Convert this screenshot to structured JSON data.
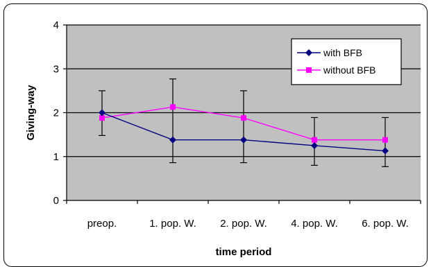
{
  "chart_data": {
    "type": "line",
    "title": "",
    "xlabel": "time period",
    "ylabel": "Giving-way",
    "ylim": [
      0,
      4
    ],
    "yticks": [
      0,
      1,
      2,
      3,
      4
    ],
    "grid": true,
    "legend_position": "top-right",
    "categories": [
      "preop.",
      "1. pop. W.",
      "2. pop. W.",
      "4. pop. W.",
      "6. pop. W."
    ],
    "series": [
      {
        "name": "with BFB",
        "color": "#000080",
        "marker": "diamond",
        "values": [
          2.0,
          1.38,
          1.38,
          1.25,
          1.13
        ],
        "error_low": [
          1.48,
          0.86,
          0.86,
          0.8,
          0.77
        ],
        "error_high": [
          2.5,
          2.77,
          2.5,
          1.89,
          1.89
        ]
      },
      {
        "name": "without BFB",
        "color": "#ff00ff",
        "marker": "square",
        "values": [
          1.88,
          2.13,
          1.88,
          1.38,
          1.38
        ]
      }
    ],
    "colors": {
      "plot_background": "#c0c0c0",
      "grid": "#000000"
    }
  }
}
